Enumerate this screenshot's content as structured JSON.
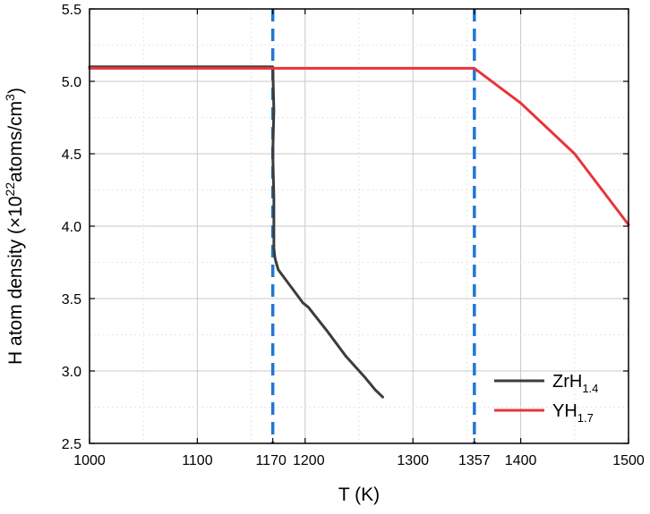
{
  "chart_data": {
    "type": "line",
    "xlabel": "T (K)",
    "ylabel": {
      "prefix": "H atom density (×10",
      "exp": "22",
      "mid": "atoms/cm",
      "exp2": "3",
      "suffix": ")"
    },
    "xlim": [
      1000,
      1500
    ],
    "ylim": [
      2.5,
      5.5
    ],
    "x_ticks": [
      1000,
      1100,
      1170,
      1200,
      1300,
      1357,
      1400,
      1500
    ],
    "y_ticks": [
      2.5,
      3.0,
      3.5,
      4.0,
      4.5,
      5.0,
      5.5
    ],
    "grid": true,
    "minor_grid": true,
    "vlines": [
      {
        "x": 1170,
        "color": "#1f77d4",
        "style": "dashed"
      },
      {
        "x": 1357,
        "color": "#1f77d4",
        "style": "dashed"
      }
    ],
    "legend_position": "bottom-right",
    "series": [
      {
        "name": "ZrH",
        "subscript": "1.4",
        "color": "#3c3c3c",
        "points": [
          [
            1000,
            5.1
          ],
          [
            1170,
            5.1
          ],
          [
            1170,
            5.1
          ],
          [
            1171,
            4.8
          ],
          [
            1170,
            4.5
          ],
          [
            1171,
            4.2
          ],
          [
            1171,
            3.85
          ],
          [
            1172,
            3.78
          ],
          [
            1175,
            3.7
          ],
          [
            1190,
            3.55
          ],
          [
            1198,
            3.47
          ],
          [
            1203,
            3.44
          ],
          [
            1220,
            3.28
          ],
          [
            1238,
            3.1
          ],
          [
            1255,
            2.96
          ],
          [
            1265,
            2.87
          ],
          [
            1272,
            2.82
          ]
        ]
      },
      {
        "name": "YH",
        "subscript": "1.7",
        "color": "#e8343a",
        "points": [
          [
            1000,
            5.09
          ],
          [
            1357,
            5.09
          ],
          [
            1400,
            4.85
          ],
          [
            1450,
            4.5
          ],
          [
            1500,
            4.01
          ]
        ]
      }
    ]
  }
}
